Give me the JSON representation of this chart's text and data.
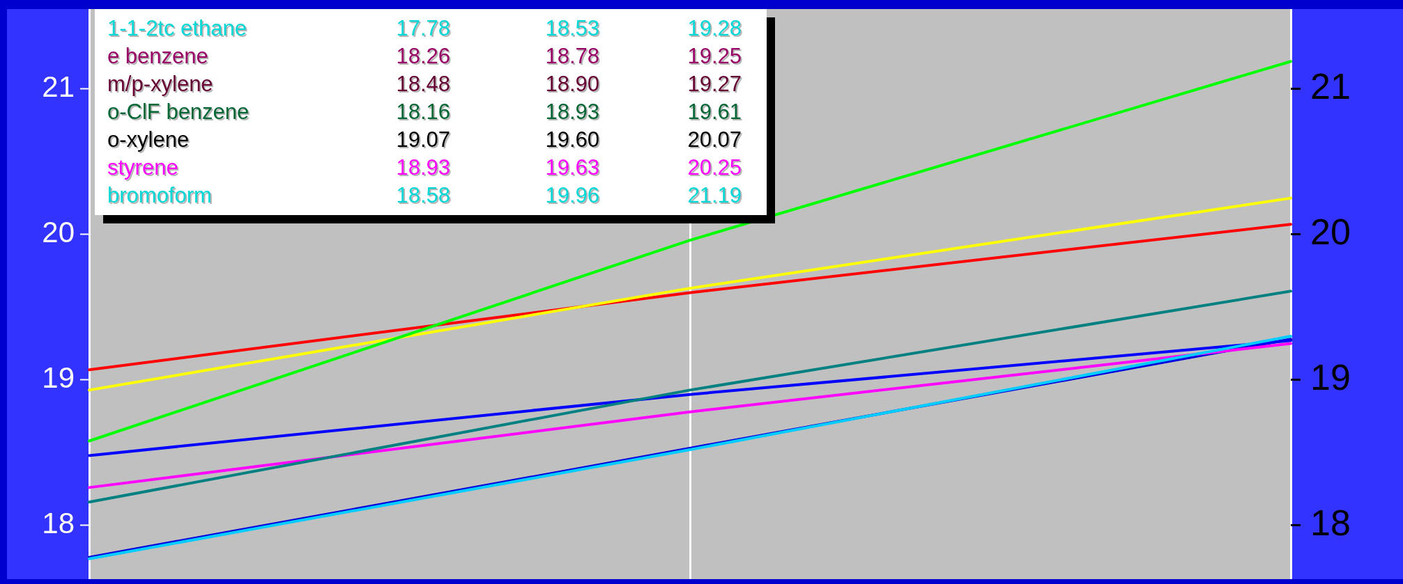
{
  "chart_data": {
    "type": "line",
    "categories": [
      null,
      null,
      null
    ],
    "series": [
      {
        "color": "#0000dd",
        "values": [
          17.78,
          18.53,
          19.28
        ]
      },
      {
        "color": "#ff00ff",
        "values": [
          18.26,
          18.78,
          19.25
        ]
      },
      {
        "color": "#0000ff",
        "values": [
          18.48,
          18.9,
          19.27
        ]
      },
      {
        "color": "#008080",
        "values": [
          18.16,
          18.93,
          19.61
        ]
      },
      {
        "color": "#ff0000",
        "values": [
          19.07,
          19.6,
          20.07
        ]
      },
      {
        "color": "#ffff00",
        "values": [
          18.93,
          19.63,
          20.25
        ]
      },
      {
        "color": "#00ff00",
        "values": [
          18.58,
          19.96,
          21.19
        ]
      },
      {
        "color": "#00ccff",
        "values": [
          17.77,
          18.52,
          19.3
        ]
      }
    ],
    "annotations": [
      "1-1-2tc ethane",
      "17.78",
      "18.53",
      "19.28",
      "e benzene",
      "18.26",
      "18.78",
      "19.25",
      "m/p-xylene",
      "18.48",
      "18.90",
      "19.27",
      "o-ClF benzene",
      "18.16",
      "18.93",
      "19.61",
      "o-xylene",
      "19.07",
      "19.60",
      "20.07",
      "styrene",
      "18.93",
      "19.63",
      "20.25",
      "bromoform",
      "18.58",
      "19.96",
      "21.19"
    ],
    "ylim": [
      17.63,
      21.55
    ],
    "yticks": [
      18,
      19,
      20,
      21
    ],
    "y2lim": [
      17.63,
      21.55
    ],
    "y2ticks": [
      18,
      19,
      20,
      21
    ],
    "grid": "x",
    "marker": "none"
  }
}
